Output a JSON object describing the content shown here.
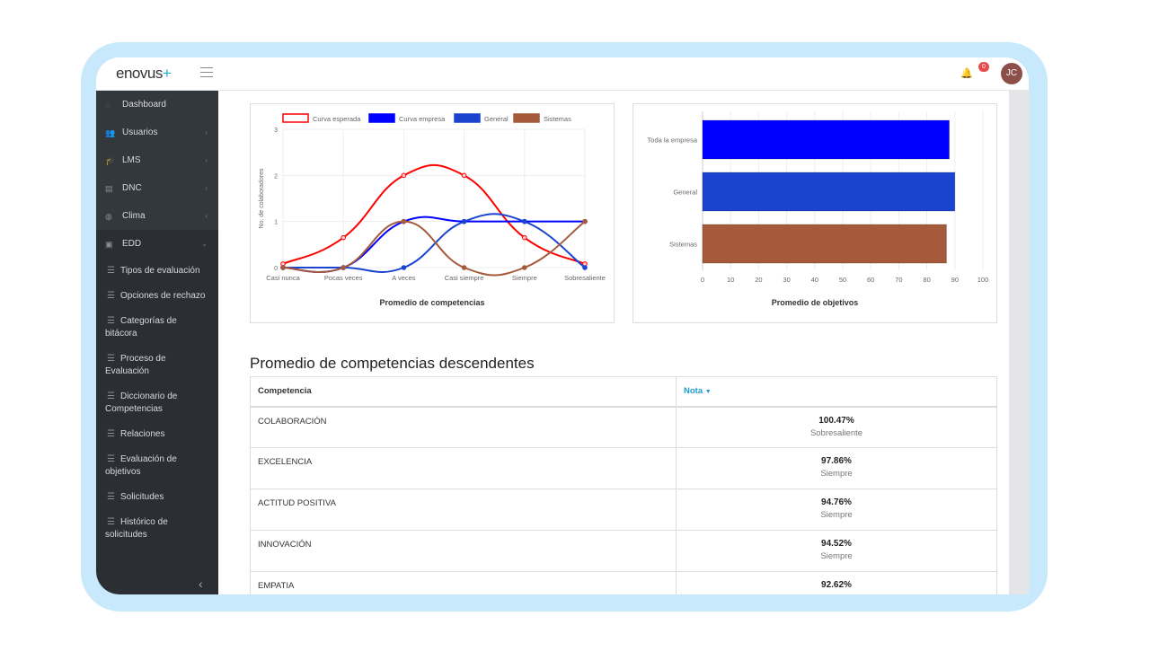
{
  "app": {
    "logo": "enovus",
    "logo_plus": "+",
    "notifications": "0",
    "user_initials": "JC"
  },
  "sidebar": {
    "items": [
      {
        "label": "Dashboard",
        "icon": "dashboard-icon",
        "glyph": "◌",
        "chevron": ""
      },
      {
        "label": "Usuarios",
        "icon": "users-icon",
        "glyph": "👥",
        "chevron": "‹"
      },
      {
        "label": "LMS",
        "icon": "graduation-cap-icon",
        "glyph": "🎓",
        "chevron": "‹"
      },
      {
        "label": "DNC",
        "icon": "book-icon",
        "glyph": "▤",
        "chevron": "‹"
      },
      {
        "label": "Clima",
        "icon": "clima-icon",
        "glyph": "◍",
        "chevron": "‹"
      },
      {
        "label": "EDD",
        "icon": "edd-icon",
        "glyph": "▣",
        "chevron": "⌄"
      }
    ],
    "subitems": [
      "Tipos de evaluación",
      "Opciones de rechazo",
      "Categorías de bitácora",
      "Proceso de Evaluación",
      "Diccionario de Competencias",
      "Relaciones",
      "Evaluación de objetivos",
      "Solicitudes",
      "Histórico de solicitudes"
    ]
  },
  "chart_data": [
    {
      "type": "line",
      "title": "Promedio de competencias",
      "ylabel": "No. de colaboradores",
      "ylim": [
        0,
        3
      ],
      "yticks": [
        "0",
        "1",
        "2",
        "3"
      ],
      "categories": [
        "Casi nunca",
        "Pocas veces",
        "A veces",
        "Casi siempre",
        "Siempre",
        "Sobresaliente"
      ],
      "series": [
        {
          "name": "Curva esperada",
          "color": "#ff0000",
          "values": [
            0.08,
            0.65,
            2,
            2,
            0.65,
            0.08
          ],
          "hollow": true
        },
        {
          "name": "Curva empresa",
          "color": "#0000ff",
          "values": [
            0,
            0,
            1,
            1,
            1,
            1
          ]
        },
        {
          "name": "General",
          "color": "#1a44d0",
          "values": [
            0,
            0,
            0,
            1,
            1,
            0
          ]
        },
        {
          "name": "Sistemas",
          "color": "#a65a3c",
          "values": [
            0,
            0,
            1,
            0,
            0,
            1
          ]
        }
      ]
    },
    {
      "type": "bar",
      "orientation": "horizontal",
      "title": "Promedio de objetivos",
      "xlim": [
        0,
        100
      ],
      "xticks": [
        "0",
        "10",
        "20",
        "30",
        "40",
        "50",
        "60",
        "70",
        "80",
        "90",
        "100"
      ],
      "categories": [
        "Toda la empresa",
        "General",
        "Sistemas"
      ],
      "values": [
        88,
        90,
        87
      ],
      "colors": [
        "#0000ff",
        "#1a44d0",
        "#a65a3c"
      ]
    }
  ],
  "table": {
    "title": "Promedio de competencias descendentes",
    "col_competencia": "Competencia",
    "col_nota": "Nota",
    "rows": [
      {
        "competencia": "COLABORACIÓN",
        "nota": "100.47%",
        "nivel": "Sobresaliente"
      },
      {
        "competencia": "EXCELENCIA",
        "nota": "97.86%",
        "nivel": "Siempre"
      },
      {
        "competencia": "ACTITUD POSITIVA",
        "nota": "94.76%",
        "nivel": "Siempre"
      },
      {
        "competencia": "INNOVACIÓN",
        "nota": "94.52%",
        "nivel": "Siempre"
      },
      {
        "competencia": "EMPATIA",
        "nota": "92.62%",
        "nivel": ""
      }
    ]
  }
}
